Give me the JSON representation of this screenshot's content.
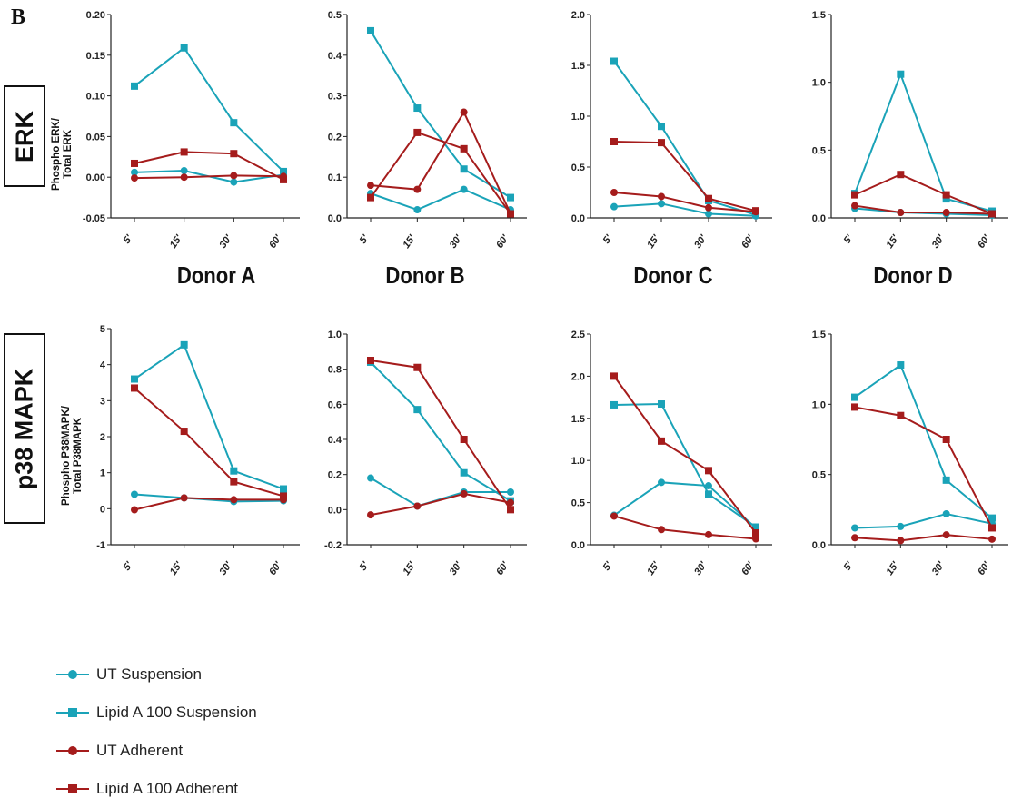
{
  "figure": {
    "panel_letter": "B",
    "row_labels": [
      "ERK",
      "p38 MAPK"
    ],
    "ylabels": {
      "erk": [
        "Phospho ERK/",
        "Total ERK"
      ],
      "p38": [
        "Phospho P38MAPK/",
        "Total P38MAPK"
      ]
    },
    "donors": [
      "Donor A",
      "Donor B",
      "Donor C",
      "Donor D"
    ]
  },
  "colors": {
    "suspension": "#1aa3b8",
    "adherent": "#a51c1c"
  },
  "legend": [
    {
      "label": "UT Suspension",
      "color": "#1aa3b8",
      "marker": "circle"
    },
    {
      "label": "Lipid A 100 Suspension",
      "color": "#1aa3b8",
      "marker": "square"
    },
    {
      "label": "UT Adherent",
      "color": "#a51c1c",
      "marker": "circle"
    },
    {
      "label": "Lipid A 100 Adherent",
      "color": "#a51c1c",
      "marker": "square"
    }
  ],
  "chart_data": [
    {
      "type": "line",
      "row": "ERK",
      "donor": "Donor A",
      "categories": [
        "5'",
        "15'",
        "30'",
        "60'"
      ],
      "ylim": [
        -0.05,
        0.2
      ],
      "yticks": [
        "-0.05",
        "0.00",
        "0.05",
        "0.10",
        "0.15",
        "0.20"
      ],
      "series": [
        {
          "name": "UT Suspension",
          "values": [
            0.006,
            0.008,
            -0.006,
            0.003
          ]
        },
        {
          "name": "Lipid A 100 Suspension",
          "values": [
            0.112,
            0.159,
            0.067,
            0.007
          ]
        },
        {
          "name": "UT Adherent",
          "values": [
            -0.001,
            0.0,
            0.002,
            0.001
          ]
        },
        {
          "name": "Lipid A 100 Adherent",
          "values": [
            0.017,
            0.031,
            0.029,
            -0.003
          ]
        }
      ]
    },
    {
      "type": "line",
      "row": "ERK",
      "donor": "Donor B",
      "categories": [
        "5'",
        "15'",
        "30'",
        "60'"
      ],
      "ylim": [
        0,
        0.5
      ],
      "yticks": [
        "0.0",
        "0.1",
        "0.2",
        "0.3",
        "0.4",
        "0.5"
      ],
      "series": [
        {
          "name": "UT Suspension",
          "values": [
            0.06,
            0.02,
            0.07,
            0.02
          ]
        },
        {
          "name": "Lipid A 100 Suspension",
          "values": [
            0.46,
            0.27,
            0.12,
            0.05
          ]
        },
        {
          "name": "UT Adherent",
          "values": [
            0.08,
            0.07,
            0.26,
            0.01
          ]
        },
        {
          "name": "Lipid A 100 Adherent",
          "values": [
            0.05,
            0.21,
            0.17,
            0.01
          ]
        }
      ]
    },
    {
      "type": "line",
      "row": "ERK",
      "donor": "Donor C",
      "categories": [
        "5'",
        "15'",
        "30'",
        "60'"
      ],
      "ylim": [
        0,
        2.0
      ],
      "yticks": [
        "0.0",
        "0.5",
        "1.0",
        "1.5",
        "2.0"
      ],
      "series": [
        {
          "name": "UT Suspension",
          "values": [
            0.11,
            0.14,
            0.04,
            0.02
          ]
        },
        {
          "name": "Lipid A 100 Suspension",
          "values": [
            1.54,
            0.9,
            0.17,
            0.03
          ]
        },
        {
          "name": "UT Adherent",
          "values": [
            0.25,
            0.21,
            0.1,
            0.06
          ]
        },
        {
          "name": "Lipid A 100 Adherent",
          "values": [
            0.75,
            0.74,
            0.19,
            0.07
          ]
        }
      ]
    },
    {
      "type": "line",
      "row": "ERK",
      "donor": "Donor D",
      "categories": [
        "5'",
        "15'",
        "30'",
        "60'"
      ],
      "ylim": [
        0,
        1.5
      ],
      "yticks": [
        "0.0",
        "0.5",
        "1.0",
        "1.5"
      ],
      "series": [
        {
          "name": "UT Suspension",
          "values": [
            0.07,
            0.04,
            0.03,
            0.02
          ]
        },
        {
          "name": "Lipid A 100 Suspension",
          "values": [
            0.18,
            1.06,
            0.14,
            0.05
          ]
        },
        {
          "name": "UT Adherent",
          "values": [
            0.09,
            0.04,
            0.04,
            0.03
          ]
        },
        {
          "name": "Lipid A 100 Adherent",
          "values": [
            0.17,
            0.32,
            0.17,
            0.03
          ]
        }
      ]
    },
    {
      "type": "line",
      "row": "p38 MAPK",
      "donor": "Donor A",
      "categories": [
        "5'",
        "15'",
        "30'",
        "60'"
      ],
      "ylim": [
        -1,
        5
      ],
      "yticks": [
        "-1",
        "0",
        "1",
        "2",
        "3",
        "4",
        "5"
      ],
      "series": [
        {
          "name": "UT Suspension",
          "values": [
            0.4,
            0.3,
            0.2,
            0.22
          ]
        },
        {
          "name": "Lipid A 100 Suspension",
          "values": [
            3.6,
            4.55,
            1.05,
            0.55
          ]
        },
        {
          "name": "UT Adherent",
          "values": [
            -0.03,
            0.3,
            0.25,
            0.25
          ]
        },
        {
          "name": "Lipid A 100 Adherent",
          "values": [
            3.35,
            2.15,
            0.75,
            0.35
          ]
        }
      ]
    },
    {
      "type": "line",
      "row": "p38 MAPK",
      "donor": "Donor B",
      "categories": [
        "5'",
        "15'",
        "30'",
        "60'"
      ],
      "ylim": [
        -0.2,
        1.0
      ],
      "yticks": [
        "-0.2",
        "0.0",
        "0.2",
        "0.4",
        "0.6",
        "0.8",
        "1.0"
      ],
      "series": [
        {
          "name": "UT Suspension",
          "values": [
            0.18,
            0.02,
            0.1,
            0.1
          ]
        },
        {
          "name": "Lipid A 100 Suspension",
          "values": [
            0.84,
            0.57,
            0.21,
            0.05
          ]
        },
        {
          "name": "UT Adherent",
          "values": [
            -0.03,
            0.02,
            0.09,
            0.04
          ]
        },
        {
          "name": "Lipid A 100 Adherent",
          "values": [
            0.85,
            0.81,
            0.4,
            0.0
          ]
        }
      ]
    },
    {
      "type": "line",
      "row": "p38 MAPK",
      "donor": "Donor C",
      "categories": [
        "5'",
        "15'",
        "30'",
        "60'"
      ],
      "ylim": [
        0,
        2.5
      ],
      "yticks": [
        "0.0",
        "0.5",
        "1.0",
        "1.5",
        "2.0",
        "2.5"
      ],
      "series": [
        {
          "name": "UT Suspension",
          "values": [
            0.35,
            0.74,
            0.7,
            0.2
          ]
        },
        {
          "name": "Lipid A 100 Suspension",
          "values": [
            1.66,
            1.67,
            0.6,
            0.21
          ]
        },
        {
          "name": "UT Adherent",
          "values": [
            0.34,
            0.18,
            0.12,
            0.07
          ]
        },
        {
          "name": "Lipid A 100 Adherent",
          "values": [
            2.0,
            1.23,
            0.88,
            0.14
          ]
        }
      ]
    },
    {
      "type": "line",
      "row": "p38 MAPK",
      "donor": "Donor D",
      "categories": [
        "5'",
        "15'",
        "30'",
        "60'"
      ],
      "ylim": [
        0,
        1.5
      ],
      "yticks": [
        "0.0",
        "0.5",
        "1.0",
        "1.5"
      ],
      "series": [
        {
          "name": "UT Suspension",
          "values": [
            0.12,
            0.13,
            0.22,
            0.15
          ]
        },
        {
          "name": "Lipid A 100 Suspension",
          "values": [
            1.05,
            1.28,
            0.46,
            0.19
          ]
        },
        {
          "name": "UT Adherent",
          "values": [
            0.05,
            0.03,
            0.07,
            0.04
          ]
        },
        {
          "name": "Lipid A 100 Adherent",
          "values": [
            0.98,
            0.92,
            0.75,
            0.12
          ]
        }
      ]
    }
  ]
}
